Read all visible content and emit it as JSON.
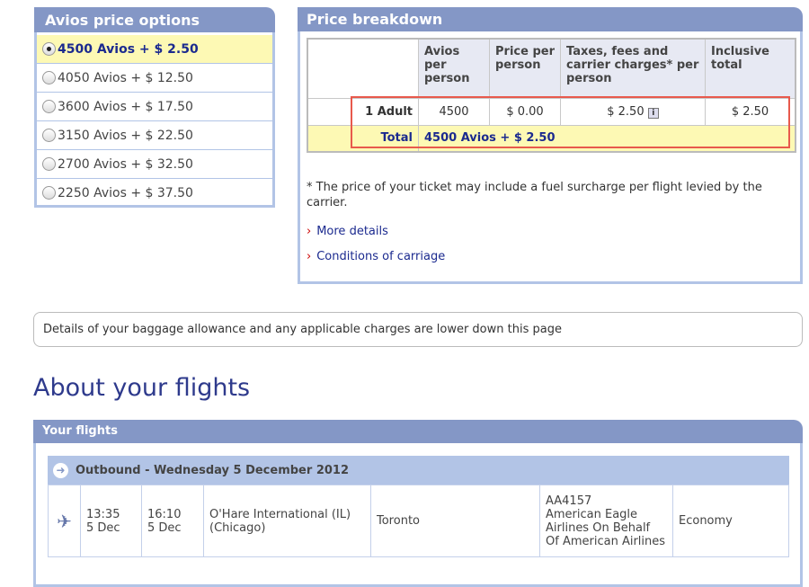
{
  "avios_options": {
    "title": "Avios price options",
    "items": [
      {
        "label": "4500 Avios + $ 2.50",
        "selected": true
      },
      {
        "label": "4050 Avios + $ 12.50",
        "selected": false
      },
      {
        "label": "3600 Avios + $ 17.50",
        "selected": false
      },
      {
        "label": "3150 Avios + $ 22.50",
        "selected": false
      },
      {
        "label": "2700 Avios + $ 32.50",
        "selected": false
      },
      {
        "label": "2250 Avios + $ 37.50",
        "selected": false
      }
    ]
  },
  "price_breakdown": {
    "title": "Price breakdown",
    "headers": [
      "",
      "Avios per person",
      "Price per person",
      "Taxes, fees and carrier charges* per person",
      "Inclusive total"
    ],
    "adult_row": {
      "label": "1 Adult",
      "avios": "4500",
      "price": "$ 0.00",
      "taxes": "$ 2.50",
      "total": "$ 2.50"
    },
    "total_row": {
      "label": "Total",
      "value": "4500 Avios + $ 2.50"
    },
    "note": "* The price of your ticket may include a fuel surcharge per flight levied by the carrier.",
    "links": [
      "More details",
      "Conditions of carriage"
    ]
  },
  "baggage_notice": "Details of your baggage allowance and any applicable charges are lower down this page",
  "flights": {
    "heading": "About your flights",
    "panel_title": "Your flights",
    "outbound": {
      "title": "Outbound - Wednesday 5 December 2012",
      "depart_time": "13:35",
      "depart_date": "5 Dec",
      "arrive_time": "16:10",
      "arrive_date": "5 Dec",
      "from": "O'Hare International (IL) (Chicago)",
      "to": "Toronto",
      "flight_no": "AA4157",
      "carrier": "American Eagle Airlines On Behalf Of American Airlines",
      "cabin": "Economy"
    }
  },
  "colors": {
    "panel_header": "#8497c6",
    "highlight": "#fdf9b4",
    "link": "#1b2a8f",
    "annotation_box": "#e8594c"
  }
}
